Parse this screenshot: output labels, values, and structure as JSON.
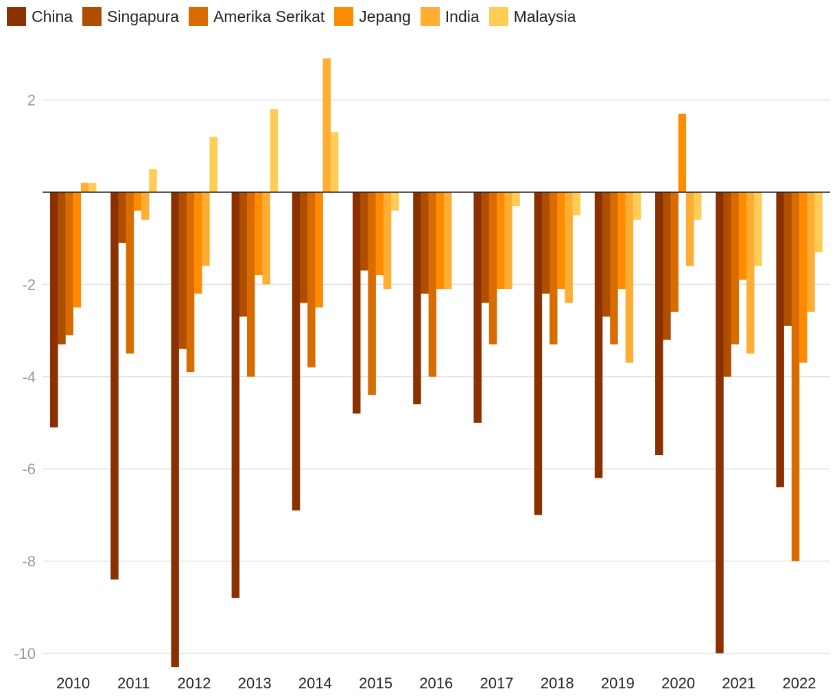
{
  "chart_data": {
    "type": "bar",
    "categories": [
      "2010",
      "2011",
      "2012",
      "2013",
      "2014",
      "2015",
      "2016",
      "2017",
      "2018",
      "2019",
      "2020",
      "2021",
      "2022"
    ],
    "series": [
      {
        "name": "China",
        "color": "#8b3000",
        "values": [
          -5.1,
          -8.4,
          -10.3,
          -8.8,
          -6.9,
          -4.8,
          -4.6,
          -5.0,
          -7.0,
          -6.2,
          -5.7,
          -10.0,
          -6.4
        ]
      },
      {
        "name": "Singapura",
        "color": "#b04e00",
        "values": [
          -3.3,
          -1.1,
          -3.4,
          -2.7,
          -2.4,
          -1.7,
          -2.2,
          -2.4,
          -2.2,
          -2.7,
          -3.2,
          -4.0,
          -2.9
        ]
      },
      {
        "name": "Amerika Serikat",
        "color": "#d86c00",
        "values": [
          -3.1,
          -3.5,
          -3.9,
          -4.0,
          -3.8,
          -4.4,
          -4.0,
          -3.3,
          -3.3,
          -3.3,
          -2.6,
          -3.3,
          -8.0
        ]
      },
      {
        "name": "Jepang",
        "color": "#ff8c00",
        "values": [
          -2.5,
          -0.4,
          -2.2,
          -1.8,
          -2.5,
          -1.8,
          -2.1,
          -2.1,
          -2.1,
          -2.1,
          1.7,
          -1.9,
          -3.7
        ]
      },
      {
        "name": "India",
        "color": "#ffad33",
        "values": [
          0.2,
          -0.6,
          -1.6,
          -2.0,
          2.9,
          -2.1,
          -2.1,
          -2.1,
          -2.4,
          -3.7,
          -1.6,
          -3.5,
          -2.6
        ]
      },
      {
        "name": "Malaysia",
        "color": "#ffcc55",
        "values": [
          0.2,
          0.5,
          1.2,
          1.8,
          1.3,
          -0.4,
          null,
          -0.3,
          -0.5,
          -0.6,
          -0.6,
          -1.6,
          -1.3
        ]
      }
    ],
    "yticks": [
      2,
      -2,
      -4,
      -6,
      -8,
      -10
    ],
    "ylim": [
      -10.3,
      3.0
    ],
    "grid": true,
    "legend": "top-left"
  }
}
